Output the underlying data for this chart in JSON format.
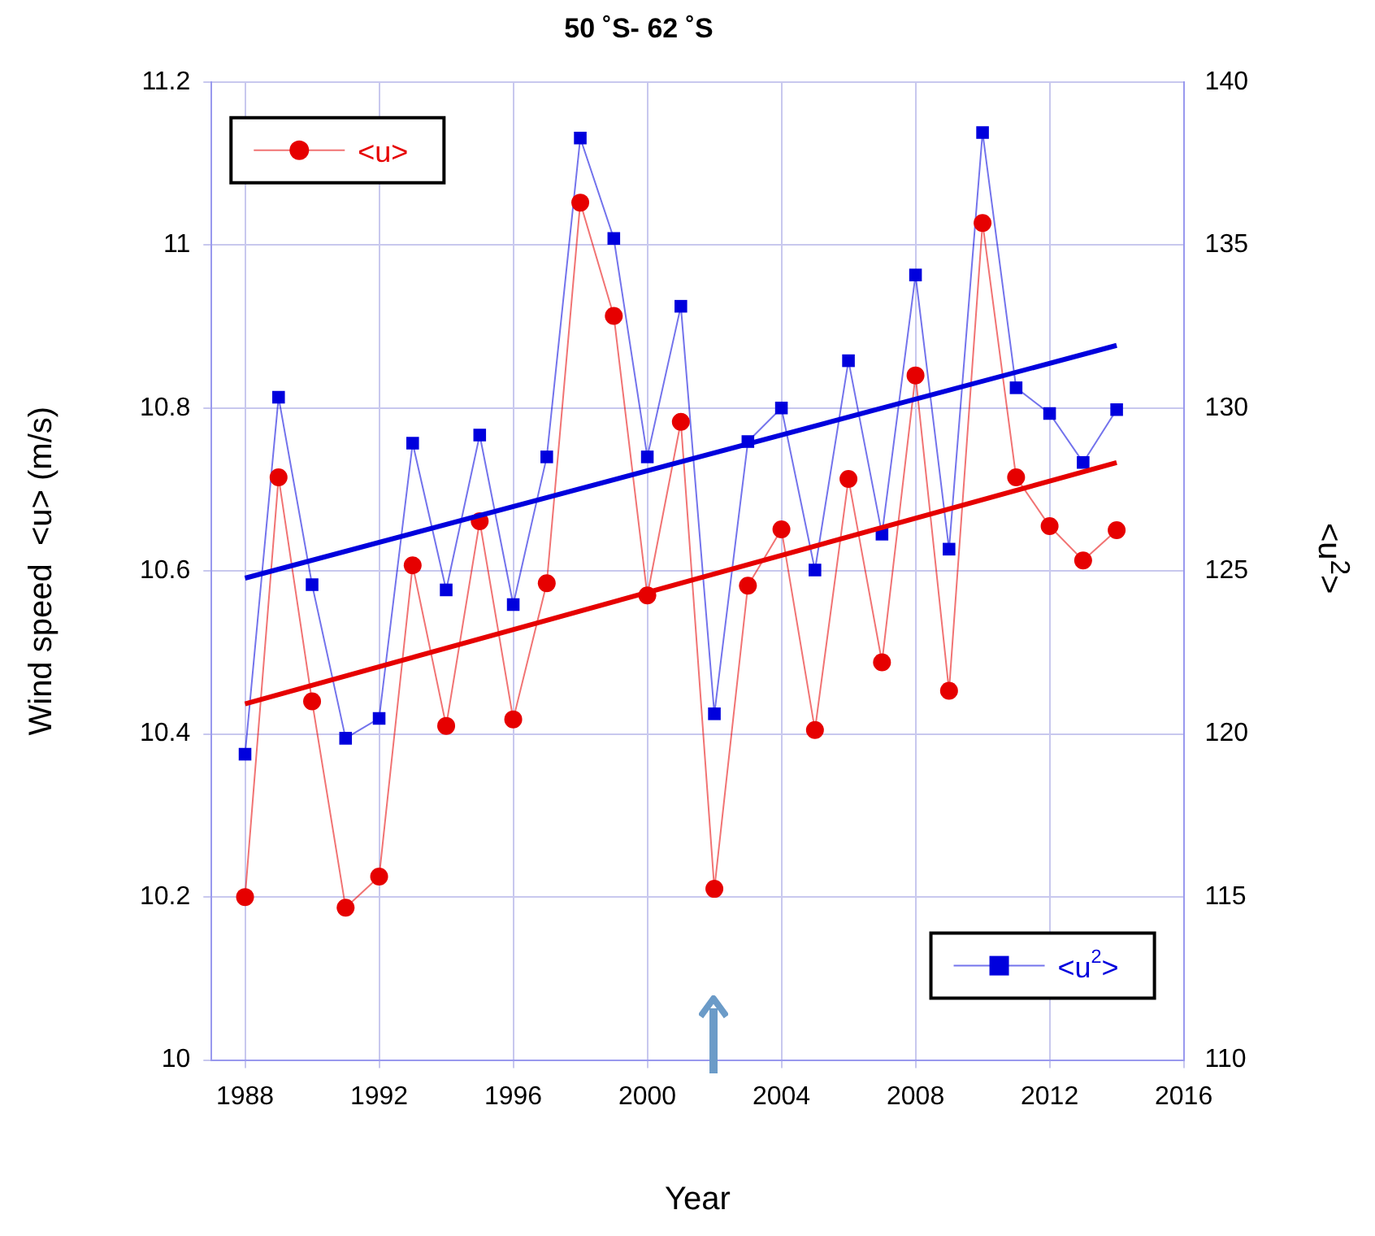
{
  "chart_data": {
    "type": "line",
    "title": "50 ˚S- 62 ˚S",
    "xlabel": "Year",
    "ylabel": "Wind speed  <u> (m/s)",
    "y2label": "<u$^{2}$>",
    "x": [
      1988,
      1989,
      1990,
      1991,
      1992,
      1993,
      1994,
      1995,
      1996,
      1997,
      1998,
      1999,
      2000,
      2001,
      2002,
      2003,
      2004,
      2005,
      2006,
      2007,
      2008,
      2009,
      2010,
      2011,
      2012,
      2013,
      2014
    ],
    "series": [
      {
        "name": "<u>",
        "color": "#e60000",
        "marker": "circle",
        "values": [
          10.2,
          10.715,
          10.44,
          10.187,
          10.225,
          10.607,
          10.41,
          10.661,
          10.418,
          10.585,
          11.052,
          10.913,
          10.57,
          10.783,
          10.21,
          10.582,
          10.651,
          10.405,
          10.713,
          10.488,
          10.84,
          10.453,
          11.027,
          10.715,
          10.655,
          10.613,
          10.65
        ]
      },
      {
        "name": "<u$^{2}$>",
        "color": "#0000dd",
        "marker": "square",
        "axis": "y2",
        "values": [
          119.38,
          130.33,
          124.58,
          119.87,
          120.48,
          128.92,
          124.42,
          129.17,
          123.97,
          128.5,
          138.28,
          135.2,
          128.5,
          133.12,
          120.62,
          128.97,
          130.0,
          125.03,
          131.45,
          126.13,
          134.08,
          125.67,
          138.45,
          130.62,
          129.83,
          128.33,
          129.95
        ]
      },
      {
        "type": "line",
        "color": "#e60000",
        "marker": "none",
        "values": [
          10.437,
          null,
          null,
          null,
          null,
          null,
          null,
          null,
          null,
          null,
          null,
          null,
          null,
          null,
          null,
          null,
          null,
          null,
          null,
          null,
          null,
          null,
          null,
          null,
          null,
          null,
          10.733
        ]
      },
      {
        "type": "line",
        "color": "#0000dd",
        "marker": "none",
        "axis": "y2",
        "values": [
          124.78,
          null,
          null,
          null,
          null,
          null,
          null,
          null,
          null,
          null,
          null,
          null,
          null,
          null,
          null,
          null,
          null,
          null,
          null,
          null,
          null,
          null,
          null,
          null,
          null,
          null,
          131.92
        ]
      }
    ],
    "xlim": [
      1987,
      2016
    ],
    "xticks": [
      1988,
      1992,
      1996,
      2000,
      2004,
      2008,
      2012,
      2016
    ],
    "ylim": [
      10,
      11.2
    ],
    "yticks": [
      10,
      10.2,
      10.4,
      10.6,
      10.8,
      11,
      11.2
    ],
    "y2lim": [
      110,
      140
    ],
    "y2ticks": [
      110,
      115,
      120,
      125,
      130,
      135,
      140
    ],
    "grid": true,
    "legend": "top left"
  }
}
